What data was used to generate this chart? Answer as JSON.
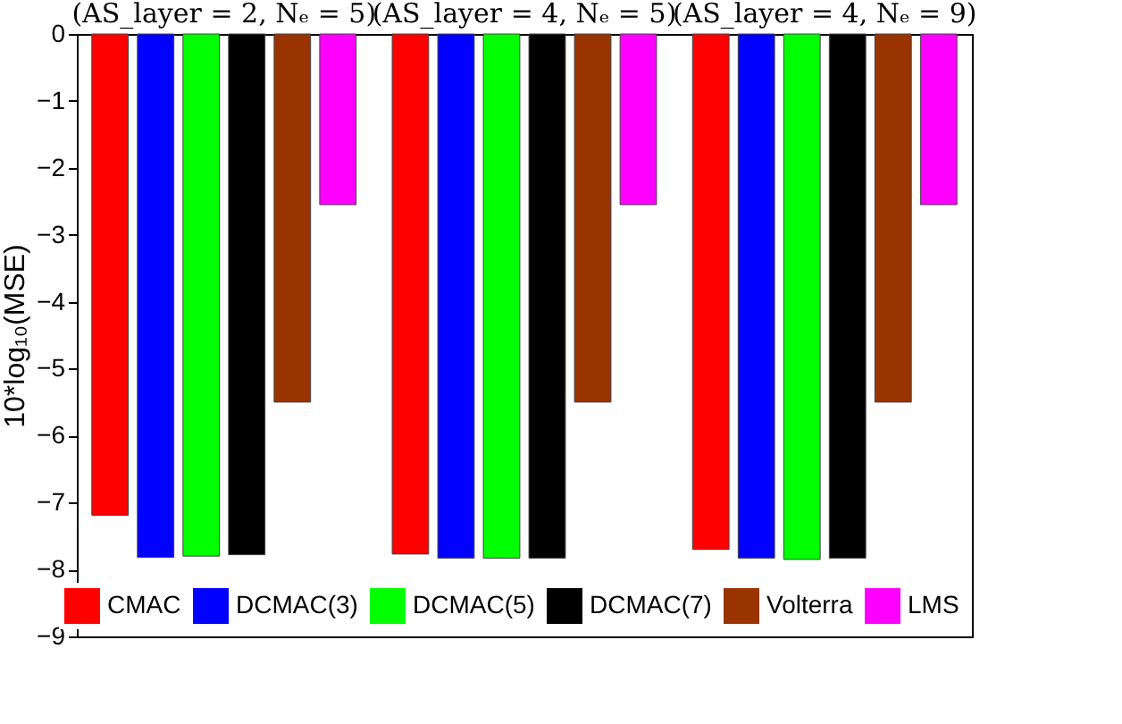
{
  "chart_data": {
    "type": "bar",
    "ylabel": "10*log₁₀(MSE)",
    "categories": [
      "(AS_layer = 2, Nₑ = 5)",
      "(AS_layer = 4, Nₑ = 5)",
      "(AS_layer = 4, Nₑ = 9)"
    ],
    "series": [
      {
        "name": "CMAC",
        "color": "#ff0000",
        "values": [
          -7.19,
          -7.77,
          -7.7
        ]
      },
      {
        "name": "DCMAC(3)",
        "color": "#0000ff",
        "values": [
          -7.82,
          -7.83,
          -7.83
        ]
      },
      {
        "name": "DCMAC(5)",
        "color": "#00ff00",
        "values": [
          -7.8,
          -7.83,
          -7.85
        ]
      },
      {
        "name": "DCMAC(7)",
        "color": "#000000",
        "values": [
          -7.78,
          -7.83,
          -7.83
        ]
      },
      {
        "name": "Volterra",
        "color": "#993300",
        "values": [
          -5.5,
          -5.5,
          -5.5
        ]
      },
      {
        "name": "LMS",
        "color": "#ff00ff",
        "values": [
          -2.55,
          -2.55,
          -2.55
        ]
      }
    ],
    "ylim": [
      -9,
      0
    ],
    "yticks": [
      -9,
      -8,
      -7,
      -6,
      -5,
      -4,
      -3,
      -2,
      -1,
      0
    ],
    "grid": false,
    "legend": "bottom right"
  }
}
